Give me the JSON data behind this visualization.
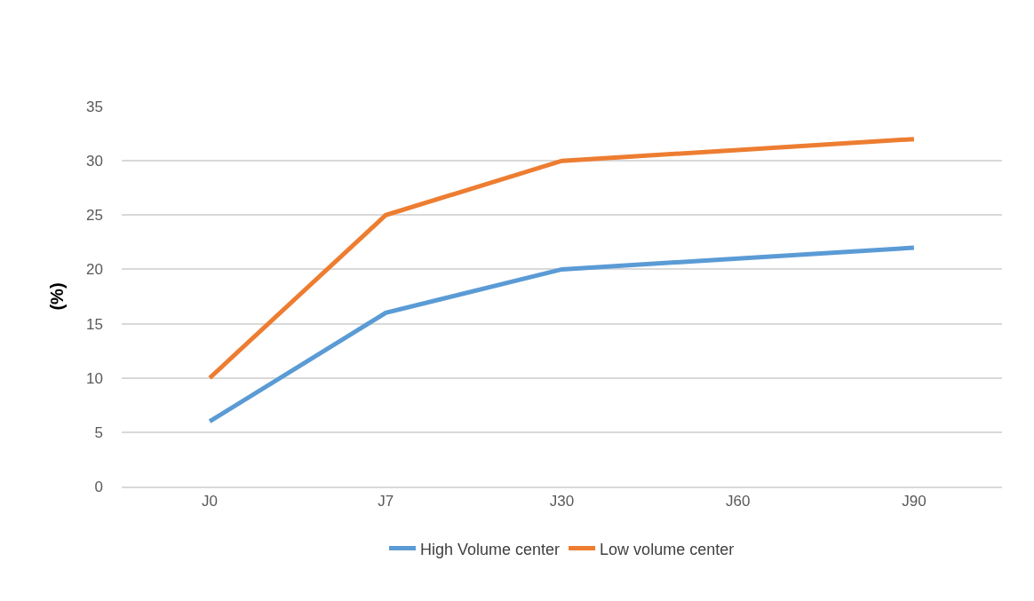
{
  "chart_data": {
    "type": "line",
    "ylabel": "(%)",
    "categories": [
      "J0",
      "J7",
      "J30",
      "J60",
      "J90"
    ],
    "series": [
      {
        "name": "High Volume center",
        "color": "#5b9bd5",
        "values": [
          6,
          16,
          20,
          21,
          22
        ]
      },
      {
        "name": "Low volume center",
        "color": "#ed7d31",
        "values": [
          10,
          25,
          30,
          31,
          32
        ]
      }
    ],
    "ylim": [
      0,
      35
    ],
    "yticks": [
      0,
      5,
      10,
      15,
      20,
      25,
      30,
      35
    ],
    "grid": "y",
    "legend": "bottom",
    "marker": "none",
    "line_style": "solid"
  }
}
